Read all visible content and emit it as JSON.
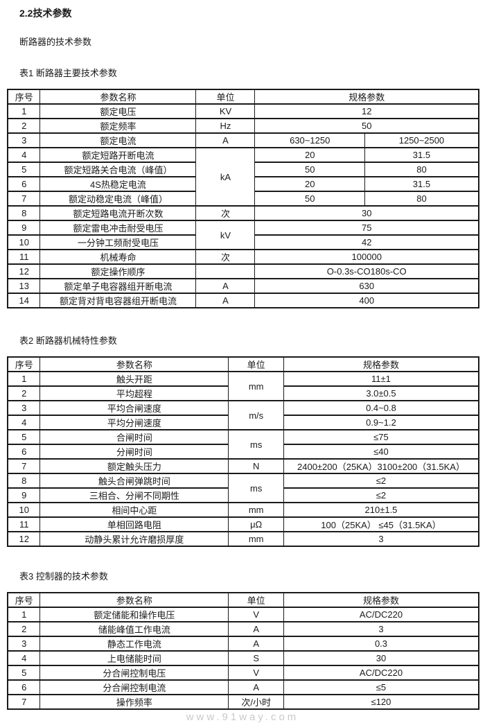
{
  "page": {
    "heading": "2.2技术参数",
    "subheading": "断路器的技术参数",
    "watermark": "www.91way.com",
    "text_color": "#1a1a1a",
    "border_color": "#1a1a1a",
    "watermark_color": "#c9c9c9"
  },
  "tables": [
    {
      "caption": "表1 断路器主要技术参数",
      "headers": [
        {
          "t": "序号"
        },
        {
          "t": "参数名称"
        },
        {
          "t": "单位"
        },
        {
          "t": "规格参数",
          "cs": 2
        }
      ],
      "rows": [
        [
          {
            "t": "1"
          },
          {
            "t": "额定电压"
          },
          {
            "t": "KV"
          },
          {
            "t": "12",
            "cs": 2
          }
        ],
        [
          {
            "t": "2"
          },
          {
            "t": "额定频率"
          },
          {
            "t": "Hz"
          },
          {
            "t": "50",
            "cs": 2
          }
        ],
        [
          {
            "t": "3"
          },
          {
            "t": "额定电流"
          },
          {
            "t": "A"
          },
          {
            "t": "630~1250"
          },
          {
            "t": "1250~2500"
          }
        ],
        [
          {
            "t": "4"
          },
          {
            "t": "额定短路开断电流"
          },
          {
            "t": "kA",
            "rs": 4
          },
          {
            "t": "20"
          },
          {
            "t": "31.5"
          }
        ],
        [
          {
            "t": "5"
          },
          {
            "t": "额定短路关合电流（峰值）"
          },
          {
            "t": "50"
          },
          {
            "t": "80"
          }
        ],
        [
          {
            "t": "6"
          },
          {
            "t": "4S热稳定电流"
          },
          {
            "t": "20"
          },
          {
            "t": "31.5"
          }
        ],
        [
          {
            "t": "7"
          },
          {
            "t": "额定动稳定电流（峰值）"
          },
          {
            "t": "50"
          },
          {
            "t": "80"
          }
        ],
        [
          {
            "t": "8"
          },
          {
            "t": "额定短路电流开断次数"
          },
          {
            "t": "次"
          },
          {
            "t": "30",
            "cs": 2
          }
        ],
        [
          {
            "t": "9"
          },
          {
            "t": "额定雷电冲击耐受电压"
          },
          {
            "t": "kV",
            "rs": 2
          },
          {
            "t": "75",
            "cs": 2
          }
        ],
        [
          {
            "t": "10"
          },
          {
            "t": "一分钟工频耐受电压"
          },
          {
            "t": "42",
            "cs": 2
          }
        ],
        [
          {
            "t": "11"
          },
          {
            "t": "机械寿命"
          },
          {
            "t": "次"
          },
          {
            "t": "100000",
            "cs": 2
          }
        ],
        [
          {
            "t": "12"
          },
          {
            "t": "额定操作顺序"
          },
          {
            "t": ""
          },
          {
            "t": "O-0.3s-CO180s-CO",
            "cs": 2
          }
        ],
        [
          {
            "t": "13"
          },
          {
            "t": "额定单子电容器组开断电流"
          },
          {
            "t": "A"
          },
          {
            "t": "630",
            "cs": 2
          }
        ],
        [
          {
            "t": "14"
          },
          {
            "t": "额定背对背电容器组开断电流"
          },
          {
            "t": "A"
          },
          {
            "t": "400",
            "cs": 2
          }
        ]
      ]
    },
    {
      "caption": "表2 断路器机械特性参数",
      "headers": [
        {
          "t": "序号"
        },
        {
          "t": "参数名称"
        },
        {
          "t": "单位"
        },
        {
          "t": "规格参数"
        }
      ],
      "rows": [
        [
          {
            "t": "1"
          },
          {
            "t": "触头开距"
          },
          {
            "t": "mm",
            "rs": 2
          },
          {
            "t": "11±1"
          }
        ],
        [
          {
            "t": "2"
          },
          {
            "t": "平均超程"
          },
          {
            "t": "3.0±0.5"
          }
        ],
        [
          {
            "t": "3"
          },
          {
            "t": "平均合闸速度"
          },
          {
            "t": "m/s",
            "rs": 2
          },
          {
            "t": "0.4~0.8"
          }
        ],
        [
          {
            "t": "4"
          },
          {
            "t": "平均分闸速度"
          },
          {
            "t": "0.9~1.2"
          }
        ],
        [
          {
            "t": "5"
          },
          {
            "t": "合闸时间"
          },
          {
            "t": "ms",
            "rs": 2
          },
          {
            "t": "≤75"
          }
        ],
        [
          {
            "t": "6"
          },
          {
            "t": "分闸时间"
          },
          {
            "t": "≤40"
          }
        ],
        [
          {
            "t": "7"
          },
          {
            "t": "额定触头压力"
          },
          {
            "t": "N"
          },
          {
            "t": "2400±200（25KA）3100±200（31.5KA）"
          }
        ],
        [
          {
            "t": "8"
          },
          {
            "t": "触头合闸弹跳时间"
          },
          {
            "t": "ms",
            "rs": 2
          },
          {
            "t": "≤2"
          }
        ],
        [
          {
            "t": "9"
          },
          {
            "t": "三相合、分闸不同期性"
          },
          {
            "t": "≤2"
          }
        ],
        [
          {
            "t": "10"
          },
          {
            "t": "相间中心距"
          },
          {
            "t": "mm"
          },
          {
            "t": "210±1.5"
          }
        ],
        [
          {
            "t": "11"
          },
          {
            "t": "单相回路电阻"
          },
          {
            "t": "μΩ"
          },
          {
            "t": "100（25KA） ≤45（31.5KA）"
          }
        ],
        [
          {
            "t": "12"
          },
          {
            "t": "动静头累计允许磨损厚度"
          },
          {
            "t": "mm"
          },
          {
            "t": "3"
          }
        ]
      ]
    },
    {
      "caption": "表3 控制器的技术参数",
      "headers": [
        {
          "t": "序号"
        },
        {
          "t": "参数名称"
        },
        {
          "t": "单位"
        },
        {
          "t": "规格参数"
        }
      ],
      "rows": [
        [
          {
            "t": "1"
          },
          {
            "t": "额定储能和操作电压"
          },
          {
            "t": "V"
          },
          {
            "t": "AC/DC220"
          }
        ],
        [
          {
            "t": "2"
          },
          {
            "t": "储能峰值工作电流"
          },
          {
            "t": "A"
          },
          {
            "t": "3"
          }
        ],
        [
          {
            "t": "3"
          },
          {
            "t": "静态工作电流"
          },
          {
            "t": "A"
          },
          {
            "t": "0.3"
          }
        ],
        [
          {
            "t": "4"
          },
          {
            "t": "上电储能时间"
          },
          {
            "t": "S"
          },
          {
            "t": "30"
          }
        ],
        [
          {
            "t": "5"
          },
          {
            "t": "分合闸控制电压"
          },
          {
            "t": "V"
          },
          {
            "t": "AC/DC220"
          }
        ],
        [
          {
            "t": "6"
          },
          {
            "t": "分合闸控制电流"
          },
          {
            "t": "A"
          },
          {
            "t": "≤5"
          }
        ],
        [
          {
            "t": "7"
          },
          {
            "t": "操作频率"
          },
          {
            "t": "次/小时"
          },
          {
            "t": "≤120"
          }
        ]
      ]
    }
  ]
}
